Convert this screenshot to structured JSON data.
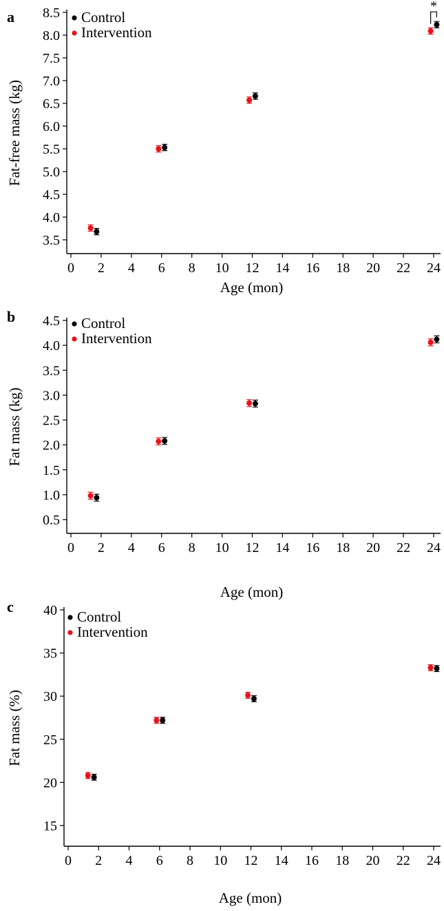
{
  "chart_data": [
    {
      "type": "scatter",
      "panel": "a",
      "title": "",
      "xlabel": "Age (mon)",
      "ylabel": "Fat-free mass (kg)",
      "xlim": [
        0,
        24
      ],
      "ylim": [
        3.3,
        8.5
      ],
      "xticks": [
        "0",
        "2",
        "4",
        "6",
        "8",
        "10",
        "12",
        "14",
        "16",
        "18",
        "20",
        "22",
        "24"
      ],
      "yticks": [
        "3.5",
        "4.0",
        "4.5",
        "5.0",
        "5.5",
        "6.0",
        "6.5",
        "7.0",
        "7.5",
        "8.0",
        "8.5"
      ],
      "legend": "top-left",
      "significance": [
        {
          "x": 24,
          "label": "*"
        }
      ],
      "series": [
        {
          "name": "Control",
          "color": "#000000",
          "x": [
            1.7,
            6.2,
            12.2,
            24.2
          ],
          "values": [
            3.68,
            5.53,
            6.66,
            8.23
          ],
          "error": [
            0.07,
            0.07,
            0.07,
            0.07
          ]
        },
        {
          "name": "Intervention",
          "color": "#e8141b",
          "x": [
            1.3,
            5.8,
            11.8,
            23.8
          ],
          "values": [
            3.76,
            5.5,
            6.57,
            8.09
          ],
          "error": [
            0.07,
            0.07,
            0.07,
            0.07
          ]
        }
      ]
    },
    {
      "type": "scatter",
      "panel": "b",
      "title": "",
      "xlabel": "Age (mon)",
      "ylabel": "Fat mass (kg)",
      "xlim": [
        0,
        24
      ],
      "ylim": [
        0.3,
        4.5
      ],
      "xticks": [
        "0",
        "2",
        "4",
        "6",
        "8",
        "10",
        "12",
        "14",
        "16",
        "18",
        "20",
        "22",
        "24"
      ],
      "yticks": [
        "0.5",
        "1.0",
        "1.5",
        "2.0",
        "2.5",
        "3.0",
        "3.5",
        "4.0",
        "4.5"
      ],
      "legend": "top-left",
      "series": [
        {
          "name": "Control",
          "color": "#000000",
          "x": [
            1.7,
            6.2,
            12.2,
            24.2
          ],
          "values": [
            0.94,
            2.08,
            2.83,
            4.12
          ],
          "error": [
            0.07,
            0.07,
            0.07,
            0.07
          ]
        },
        {
          "name": "Intervention",
          "color": "#e8141b",
          "x": [
            1.3,
            5.8,
            11.8,
            23.8
          ],
          "values": [
            0.98,
            2.07,
            2.84,
            4.06
          ],
          "error": [
            0.07,
            0.07,
            0.07,
            0.07
          ]
        }
      ]
    },
    {
      "type": "scatter",
      "panel": "c",
      "title": "",
      "xlabel": "Age (mon)",
      "ylabel": "Fat mass (%)",
      "xlim": [
        0,
        24
      ],
      "ylim": [
        14,
        40
      ],
      "xticks": [
        "0",
        "2",
        "4",
        "6",
        "8",
        "10",
        "12",
        "14",
        "16",
        "18",
        "20",
        "22",
        "24"
      ],
      "yticks": [
        "15",
        "20",
        "25",
        "30",
        "35",
        "40"
      ],
      "legend": "top-left",
      "series": [
        {
          "name": "Control",
          "color": "#000000",
          "x": [
            1.7,
            6.2,
            12.2,
            24.2
          ],
          "values": [
            20.6,
            27.2,
            29.7,
            33.2
          ],
          "error": [
            0.35,
            0.35,
            0.35,
            0.35
          ]
        },
        {
          "name": "Intervention",
          "color": "#e8141b",
          "x": [
            1.3,
            5.8,
            11.8,
            23.8
          ],
          "values": [
            20.8,
            27.2,
            30.1,
            33.3
          ],
          "error": [
            0.35,
            0.35,
            0.35,
            0.35
          ]
        }
      ]
    }
  ]
}
